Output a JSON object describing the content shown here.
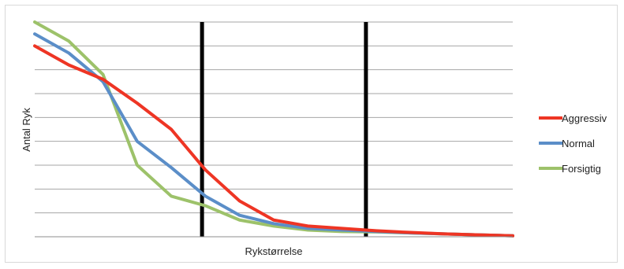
{
  "chart_data": {
    "type": "line",
    "title": "",
    "xlabel": "Rykstørrelse",
    "ylabel": "Antal Ryk",
    "x": [
      1,
      2,
      3,
      4,
      5,
      6,
      7,
      8,
      9,
      10,
      11,
      12,
      13,
      14,
      15
    ],
    "ylim": [
      0,
      9
    ],
    "grid": true,
    "legend_position": "right",
    "vertical_markers_x": [
      5.9,
      10.7
    ],
    "series": [
      {
        "name": "Aggressiv",
        "color": "#ee3524",
        "values": [
          8.0,
          7.2,
          6.6,
          5.6,
          4.5,
          2.8,
          1.5,
          0.7,
          0.45,
          0.35,
          0.25,
          0.18,
          0.12,
          0.08,
          0.04
        ]
      },
      {
        "name": "Normal",
        "color": "#5b8ec8",
        "values": [
          8.5,
          7.7,
          6.5,
          4.0,
          2.9,
          1.7,
          0.9,
          0.55,
          0.35,
          0.28,
          0.22,
          0.16,
          0.12,
          0.08,
          0.04
        ]
      },
      {
        "name": "Forsigtig",
        "color": "#9dc26a",
        "values": [
          9.0,
          8.2,
          6.8,
          3.0,
          1.7,
          1.3,
          0.7,
          0.45,
          0.28,
          0.22,
          0.2,
          0.16,
          0.12,
          0.08,
          0.04
        ]
      }
    ]
  }
}
